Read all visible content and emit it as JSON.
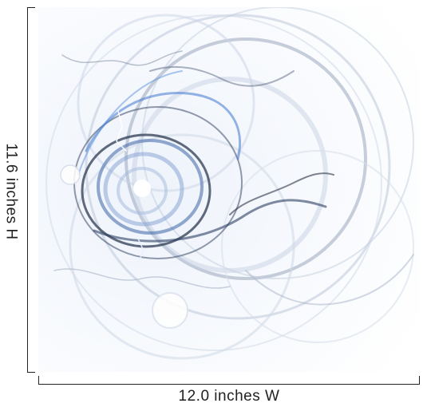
{
  "dimensions": {
    "width_label": "12.0 inches W",
    "height_label": "11.6 inches H"
  }
}
